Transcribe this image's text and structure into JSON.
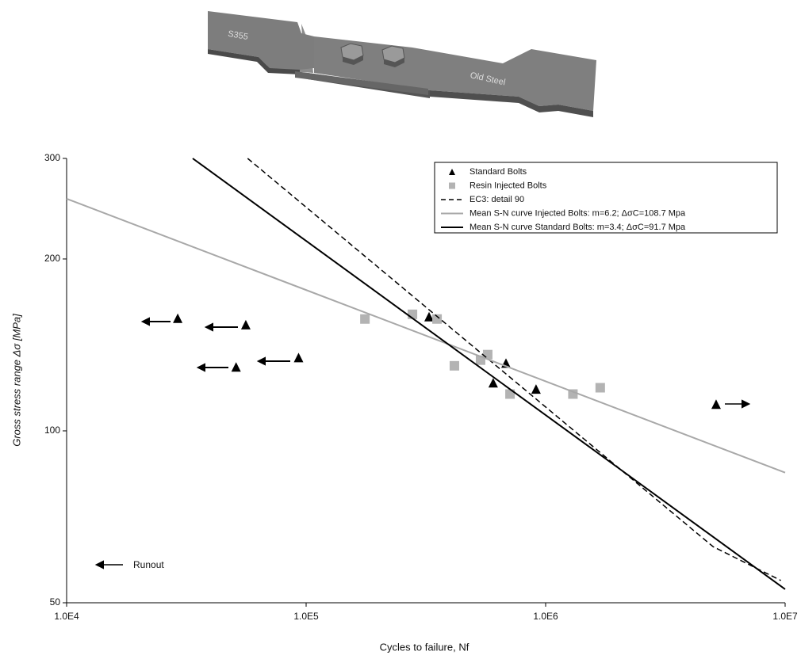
{
  "specimen": {
    "labels": [
      "S355",
      "Old Steel"
    ]
  },
  "chart_data": {
    "type": "scatter",
    "xlabel": "Cycles to failure, Nf",
    "ylabel": "Gross stress range Δσ [MPa]",
    "annotation": "Runout",
    "xlog": true,
    "ylog": true,
    "grid": false,
    "legend": "upper right",
    "xlim": [
      10000,
      10000000
    ],
    "ylim": [
      50,
      300
    ],
    "xticks": [
      {
        "value": 10000,
        "label": "1.0E4"
      },
      {
        "value": 100000,
        "label": "1.0E5"
      },
      {
        "value": 1000000,
        "label": "1.0E6"
      },
      {
        "value": 10000000,
        "label": "1.0E7"
      }
    ],
    "yticks": [
      50,
      100,
      200,
      300
    ],
    "series": [
      {
        "name": "Standard Bolts",
        "style": "triangle",
        "color": "#000000",
        "x": [
          29100,
          56000,
          51000,
          93000,
          326000,
          683000,
          604000,
          912000,
          5150000
        ],
        "values": [
          157,
          153,
          129,
          134,
          158,
          131,
          121,
          118,
          111
        ]
      },
      {
        "name": "Resin Injected Bolts",
        "style": "square",
        "color": "#b3b3b3",
        "x": [
          176000,
          278000,
          352000,
          416000,
          535000,
          573000,
          710000,
          1300000,
          1690000
        ],
        "values": [
          157,
          160,
          157,
          130,
          133,
          136,
          116,
          116,
          119
        ]
      },
      {
        "name": "EC3: detail 90",
        "style": "dashed",
        "color": "#000000",
        "x": [
          57000,
          5000000,
          9600000
        ],
        "values": [
          300,
          62.7,
          54.7
        ]
      },
      {
        "name": "Mean S-N curve Injected Bolts: m=6.2; ΔσC=108.7 Mpa",
        "style": "line",
        "color": "#a8a8a8",
        "x": [
          10000,
          10000000
        ],
        "values": [
          255,
          84.5
        ]
      },
      {
        "name": "Mean S-N curve Standard Bolts: m=3.4; ΔσC=91.7 Mpa",
        "style": "line",
        "color": "#000000",
        "x": [
          33600,
          10000000
        ],
        "values": [
          300,
          52.8
        ]
      }
    ]
  }
}
